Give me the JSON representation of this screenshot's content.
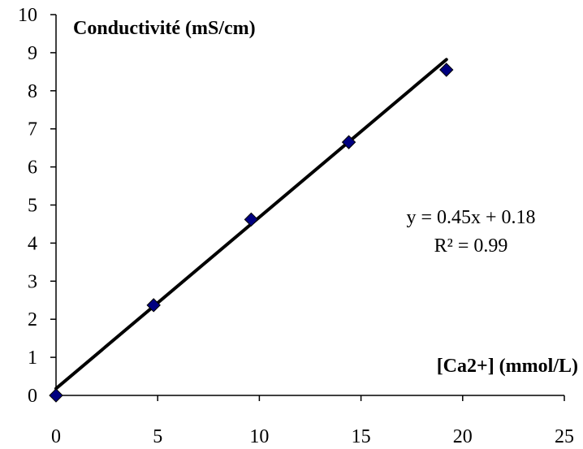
{
  "chart_data": {
    "type": "scatter",
    "ylabel": "Conductivité (mS/cm)",
    "xlabel": "[Ca2+] (mmol/L)",
    "xlim": [
      0,
      25
    ],
    "ylim": [
      0,
      10
    ],
    "xticks": [
      "0",
      "5",
      "10",
      "15",
      "20",
      "25"
    ],
    "yticks": [
      "0",
      "1",
      "2",
      "3",
      "4",
      "5",
      "6",
      "7",
      "8",
      "9",
      "10"
    ],
    "grid": false,
    "series": [
      {
        "x": [
          0,
          4.8,
          9.6,
          14.4,
          19.2
        ],
        "y": [
          0,
          2.37,
          4.62,
          6.65,
          8.55
        ],
        "marker": "diamond",
        "color": "#000080"
      }
    ],
    "trendline": {
      "slope": 0.45,
      "intercept": 0.18,
      "x_range": [
        0,
        19.2
      ],
      "equation": "y = 0.45x + 0.18",
      "r2": "R² = 0.99",
      "color": "#000000"
    }
  }
}
